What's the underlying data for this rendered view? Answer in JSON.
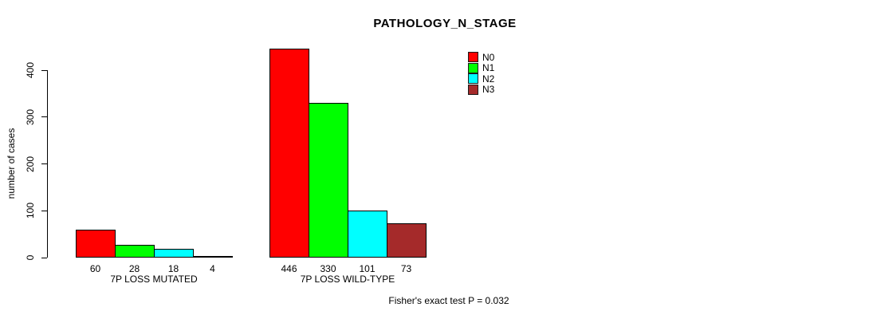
{
  "chart_data": {
    "type": "bar",
    "title": "PATHOLOGY_N_STAGE",
    "ylabel": "number of cases",
    "xlabel": "",
    "categories": [
      "7P LOSS MUTATED",
      "7P LOSS WILD-TYPE"
    ],
    "series": [
      {
        "name": "N0",
        "color": "#ff0000",
        "values": [
          60,
          446
        ]
      },
      {
        "name": "N1",
        "color": "#00ff00",
        "values": [
          28,
          330
        ]
      },
      {
        "name": "N2",
        "color": "#00ffff",
        "values": [
          18,
          101
        ]
      },
      {
        "name": "N3",
        "color": "#a52a2a",
        "values": [
          4,
          73
        ]
      }
    ],
    "yticks": [
      0,
      100,
      200,
      300,
      400
    ],
    "ylim": [
      0,
      450
    ],
    "grid": false,
    "legend_position": "top-right",
    "bar_value_labels_shown": true,
    "annotation": "Fisher's exact test P = 0.032"
  },
  "colors": {
    "background": "#ffffff",
    "text": "#000000",
    "bar_border": "#000000"
  }
}
